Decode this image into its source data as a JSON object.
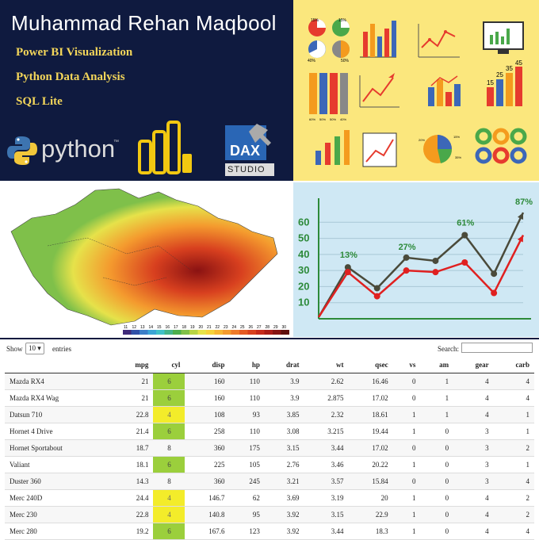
{
  "banner": {
    "name": "Muhammad Rehan Maqbool",
    "skills": [
      "Power BI Visualization",
      "Python Data Analysis",
      "SQL Lite"
    ],
    "python_logo_text": "python",
    "python_tm": "™",
    "dax_logo_text": "DAX",
    "dax_sub_text": "STUDIO"
  },
  "icons": {
    "pie_labels": [
      "15%",
      "15%",
      "40%",
      "50%"
    ],
    "stack_labels": [
      "60%",
      "50%",
      "50%",
      "40%"
    ],
    "bar_values": [
      "15",
      "25",
      "35",
      "45"
    ],
    "pie_side_labels": [
      "20%",
      "15%",
      "35%"
    ]
  },
  "map": {
    "legend_ticks": [
      "11",
      "12",
      "13",
      "14",
      "15",
      "16",
      "17",
      "18",
      "19",
      "20",
      "21",
      "22",
      "23",
      "24",
      "25",
      "26",
      "27",
      "28",
      "29",
      "30"
    ],
    "legend_colors": [
      "#3f2a7a",
      "#3050a8",
      "#3a7dc8",
      "#3aa4d6",
      "#40c0c8",
      "#44b48a",
      "#4cae4c",
      "#7fc04a",
      "#b7d444",
      "#e6e24a",
      "#f5d23c",
      "#f7b634",
      "#f49a2e",
      "#ee7a2a",
      "#e55a24",
      "#d8401f",
      "#c52a1c",
      "#a91c18",
      "#861414",
      "#5e0e0e"
    ]
  },
  "chart_data": {
    "type": "line",
    "title": "",
    "xlabel": "",
    "ylabel": "",
    "ylim": [
      0,
      70
    ],
    "yticks": [
      10,
      20,
      30,
      40,
      50,
      60
    ],
    "x": [
      0,
      1,
      2,
      3,
      4,
      5,
      6,
      7
    ],
    "series": [
      {
        "values": [
          1,
          32,
          19,
          38,
          36,
          52,
          28,
          66
        ],
        "color": "#4a4a3a"
      },
      {
        "values": [
          1,
          29,
          14,
          30,
          29,
          35,
          16,
          52
        ],
        "color": "#e02020"
      }
    ],
    "annotations": [
      {
        "text": "13%",
        "x": 1,
        "y": 38
      },
      {
        "text": "27%",
        "x": 3,
        "y": 43
      },
      {
        "text": "61%",
        "x": 5,
        "y": 58
      },
      {
        "text": "87%",
        "x": 7,
        "y": 71
      }
    ],
    "grid": true
  },
  "table": {
    "show_label": "Show",
    "entries_value": "10",
    "entries_label": "entries",
    "search_label": "Search:",
    "columns": [
      "",
      "mpg",
      "cyl",
      "disp",
      "hp",
      "drat",
      "wt",
      "qsec",
      "vs",
      "am",
      "gear",
      "carb"
    ],
    "rows": [
      [
        "Mazda RX4",
        "21",
        "6",
        "160",
        "110",
        "3.9",
        "2.62",
        "16.46",
        "0",
        "1",
        "4",
        "4"
      ],
      [
        "Mazda RX4 Wag",
        "21",
        "6",
        "160",
        "110",
        "3.9",
        "2.875",
        "17.02",
        "0",
        "1",
        "4",
        "4"
      ],
      [
        "Datsun 710",
        "22.8",
        "4",
        "108",
        "93",
        "3.85",
        "2.32",
        "18.61",
        "1",
        "1",
        "4",
        "1"
      ],
      [
        "Hornet 4 Drive",
        "21.4",
        "6",
        "258",
        "110",
        "3.08",
        "3.215",
        "19.44",
        "1",
        "0",
        "3",
        "1"
      ],
      [
        "Hornet Sportabout",
        "18.7",
        "8",
        "360",
        "175",
        "3.15",
        "3.44",
        "17.02",
        "0",
        "0",
        "3",
        "2"
      ],
      [
        "Valiant",
        "18.1",
        "6",
        "225",
        "105",
        "2.76",
        "3.46",
        "20.22",
        "1",
        "0",
        "3",
        "1"
      ],
      [
        "Duster 360",
        "14.3",
        "8",
        "360",
        "245",
        "3.21",
        "3.57",
        "15.84",
        "0",
        "0",
        "3",
        "4"
      ],
      [
        "Merc 240D",
        "24.4",
        "4",
        "146.7",
        "62",
        "3.69",
        "3.19",
        "20",
        "1",
        "0",
        "4",
        "2"
      ],
      [
        "Merc 230",
        "22.8",
        "4",
        "140.8",
        "95",
        "3.92",
        "3.15",
        "22.9",
        "1",
        "0",
        "4",
        "2"
      ],
      [
        "Merc 280",
        "19.2",
        "6",
        "167.6",
        "123",
        "3.92",
        "3.44",
        "18.3",
        "1",
        "0",
        "4",
        "4"
      ]
    ]
  }
}
